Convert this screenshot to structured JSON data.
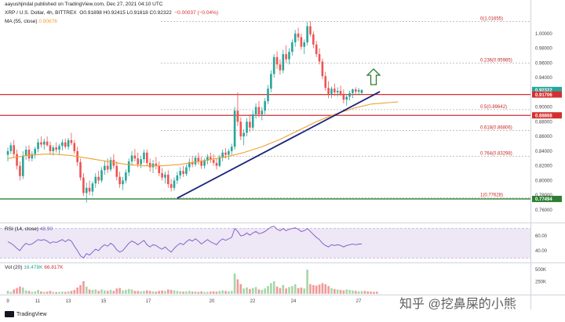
{
  "header": {
    "publisher": "aayushjindal published on TradingView.com, Dec 27, 2021 04:10 UTC",
    "symbol_line": "XRP / U.S. Dollar, 4h, BITTREX",
    "ohlc": "O0.91898  H0.92415  L0.91818  C0.92322",
    "change": "−0.00037 (−0.04%)",
    "ma_label": "MA (55, close)",
    "ma_value": "0.90676"
  },
  "rsi_header": {
    "label": "RSI (14, close)",
    "value": "48.90"
  },
  "vol_header": {
    "label": "Vol (20)",
    "v1": "16.478K",
    "v2": "66.817K"
  },
  "footer": {
    "brand": "TradingView"
  },
  "watermark": "知乎 @挖鼻屎的小熊",
  "colors": {
    "up": "#26a69a",
    "down": "#ef5350",
    "ma": "#f0a030",
    "trendline": "#1a237e",
    "support": "#d32f2f",
    "green_level": "#2e7d32",
    "rsi": "#7e57c2",
    "arrow": "#2e7d32"
  },
  "chart_data": {
    "type": "candlestick",
    "x_tick_labels": [
      "9",
      "11",
      "13",
      "15",
      "17",
      "20",
      "22",
      "24",
      "27"
    ],
    "y_range": [
      0.745,
      1.035
    ],
    "y_ticks": [
      "1.00000",
      "0.98000",
      "0.96000",
      "0.94000",
      "0.90000",
      "0.88000",
      "0.86000",
      "0.84000",
      "0.82000",
      "0.80000",
      "0.78000",
      "0.76000"
    ],
    "price_labels": [
      {
        "text": "0.92322",
        "value": 0.92322,
        "color": "#26a69a"
      },
      {
        "text": "0.91706",
        "value": 0.91706,
        "color": "#d32f2f"
      },
      {
        "text": "0.88868",
        "value": 0.88868,
        "color": "#d32f2f"
      },
      {
        "text": "0.77494",
        "value": 0.77494,
        "color": "#2e7d32"
      }
    ],
    "horizontal_levels": [
      {
        "value": 0.91706,
        "color": "#d32f2f"
      },
      {
        "value": 0.88868,
        "color": "#d32f2f"
      },
      {
        "value": 0.77494,
        "color": "#2e7d32"
      }
    ],
    "fib_levels": [
      {
        "label": "0(1.01655)",
        "value": 1.01655
      },
      {
        "label": "0.236(0.95985)",
        "value": 0.95985
      },
      {
        "label": "0.5(0.89642)",
        "value": 0.89642
      },
      {
        "label": "0.618(0.86806)",
        "value": 0.86806
      },
      {
        "label": "0.764(0.83298)",
        "value": 0.83298
      },
      {
        "label": "1(0.77628)",
        "value": 0.77628
      }
    ],
    "trendline": {
      "from": {
        "bar": 56,
        "price": 0.776
      },
      "to": {
        "bar": 123,
        "price": 0.921
      }
    },
    "candles": [
      [
        0.835,
        0.845,
        0.826,
        0.84
      ],
      [
        0.84,
        0.852,
        0.836,
        0.848
      ],
      [
        0.848,
        0.855,
        0.832,
        0.836
      ],
      [
        0.836,
        0.842,
        0.815,
        0.82
      ],
      [
        0.82,
        0.826,
        0.8,
        0.806
      ],
      [
        0.806,
        0.84,
        0.802,
        0.834
      ],
      [
        0.834,
        0.847,
        0.828,
        0.842
      ],
      [
        0.842,
        0.848,
        0.826,
        0.83
      ],
      [
        0.83,
        0.84,
        0.826,
        0.836
      ],
      [
        0.836,
        0.846,
        0.83,
        0.843
      ],
      [
        0.843,
        0.857,
        0.838,
        0.852
      ],
      [
        0.852,
        0.86,
        0.845,
        0.849
      ],
      [
        0.849,
        0.857,
        0.842,
        0.853
      ],
      [
        0.853,
        0.86,
        0.846,
        0.848
      ],
      [
        0.848,
        0.853,
        0.835,
        0.84
      ],
      [
        0.84,
        0.848,
        0.834,
        0.845
      ],
      [
        0.845,
        0.852,
        0.838,
        0.842
      ],
      [
        0.842,
        0.85,
        0.836,
        0.847
      ],
      [
        0.847,
        0.856,
        0.841,
        0.852
      ],
      [
        0.852,
        0.857,
        0.843,
        0.846
      ],
      [
        0.846,
        0.858,
        0.842,
        0.855
      ],
      [
        0.855,
        0.865,
        0.848,
        0.851
      ],
      [
        0.851,
        0.855,
        0.836,
        0.84
      ],
      [
        0.84,
        0.846,
        0.82,
        0.825
      ],
      [
        0.825,
        0.83,
        0.8,
        0.804
      ],
      [
        0.804,
        0.81,
        0.779,
        0.783
      ],
      [
        0.783,
        0.797,
        0.77,
        0.79
      ],
      [
        0.79,
        0.8,
        0.78,
        0.785
      ],
      [
        0.785,
        0.799,
        0.779,
        0.796
      ],
      [
        0.796,
        0.81,
        0.79,
        0.805
      ],
      [
        0.805,
        0.813,
        0.795,
        0.8
      ],
      [
        0.8,
        0.818,
        0.797,
        0.814
      ],
      [
        0.814,
        0.826,
        0.808,
        0.82
      ],
      [
        0.82,
        0.83,
        0.81,
        0.815
      ],
      [
        0.815,
        0.832,
        0.812,
        0.828
      ],
      [
        0.828,
        0.836,
        0.816,
        0.82
      ],
      [
        0.82,
        0.826,
        0.8,
        0.805
      ],
      [
        0.805,
        0.812,
        0.79,
        0.795
      ],
      [
        0.795,
        0.805,
        0.787,
        0.8
      ],
      [
        0.8,
        0.815,
        0.796,
        0.811
      ],
      [
        0.811,
        0.83,
        0.806,
        0.826
      ],
      [
        0.826,
        0.84,
        0.82,
        0.834
      ],
      [
        0.834,
        0.843,
        0.826,
        0.83
      ],
      [
        0.83,
        0.838,
        0.818,
        0.822
      ],
      [
        0.822,
        0.834,
        0.817,
        0.829
      ],
      [
        0.829,
        0.842,
        0.824,
        0.838
      ],
      [
        0.838,
        0.842,
        0.82,
        0.824
      ],
      [
        0.824,
        0.83,
        0.812,
        0.818
      ],
      [
        0.818,
        0.828,
        0.81,
        0.823
      ],
      [
        0.823,
        0.832,
        0.815,
        0.82
      ],
      [
        0.82,
        0.826,
        0.806,
        0.81
      ],
      [
        0.81,
        0.817,
        0.8,
        0.804
      ],
      [
        0.804,
        0.812,
        0.796,
        0.808
      ],
      [
        0.808,
        0.814,
        0.79,
        0.795
      ],
      [
        0.795,
        0.802,
        0.785,
        0.79
      ],
      [
        0.79,
        0.804,
        0.786,
        0.8
      ],
      [
        0.8,
        0.812,
        0.795,
        0.807
      ],
      [
        0.807,
        0.818,
        0.802,
        0.813
      ],
      [
        0.813,
        0.82,
        0.805,
        0.809
      ],
      [
        0.809,
        0.822,
        0.806,
        0.818
      ],
      [
        0.818,
        0.83,
        0.813,
        0.825
      ],
      [
        0.825,
        0.833,
        0.818,
        0.822
      ],
      [
        0.822,
        0.834,
        0.819,
        0.831
      ],
      [
        0.831,
        0.838,
        0.822,
        0.826
      ],
      [
        0.826,
        0.832,
        0.816,
        0.82
      ],
      [
        0.82,
        0.83,
        0.816,
        0.827
      ],
      [
        0.827,
        0.836,
        0.822,
        0.832
      ],
      [
        0.832,
        0.838,
        0.824,
        0.828
      ],
      [
        0.828,
        0.836,
        0.82,
        0.824
      ],
      [
        0.824,
        0.83,
        0.815,
        0.82
      ],
      [
        0.82,
        0.835,
        0.818,
        0.832
      ],
      [
        0.832,
        0.842,
        0.826,
        0.838
      ],
      [
        0.838,
        0.844,
        0.83,
        0.835
      ],
      [
        0.835,
        0.843,
        0.828,
        0.84
      ],
      [
        0.84,
        0.85,
        0.835,
        0.846
      ],
      [
        0.846,
        0.9,
        0.842,
        0.895
      ],
      [
        0.895,
        0.92,
        0.874,
        0.88
      ],
      [
        0.88,
        0.886,
        0.855,
        0.86
      ],
      [
        0.86,
        0.87,
        0.848,
        0.865
      ],
      [
        0.865,
        0.885,
        0.86,
        0.88
      ],
      [
        0.88,
        0.89,
        0.866,
        0.872
      ],
      [
        0.872,
        0.895,
        0.868,
        0.89
      ],
      [
        0.89,
        0.905,
        0.884,
        0.9
      ],
      [
        0.9,
        0.908,
        0.886,
        0.89
      ],
      [
        0.89,
        0.9,
        0.882,
        0.895
      ],
      [
        0.895,
        0.912,
        0.89,
        0.908
      ],
      [
        0.908,
        0.93,
        0.904,
        0.925
      ],
      [
        0.925,
        0.95,
        0.92,
        0.945
      ],
      [
        0.945,
        0.972,
        0.94,
        0.968
      ],
      [
        0.968,
        0.976,
        0.952,
        0.958
      ],
      [
        0.958,
        0.965,
        0.944,
        0.95
      ],
      [
        0.95,
        0.978,
        0.946,
        0.972
      ],
      [
        0.972,
        0.984,
        0.96,
        0.965
      ],
      [
        0.965,
        0.98,
        0.958,
        0.975
      ],
      [
        0.975,
        0.992,
        0.97,
        0.988
      ],
      [
        0.988,
        1.005,
        0.982,
        1.0
      ],
      [
        1.0,
        1.008,
        0.99,
        0.995
      ],
      [
        0.995,
        1.0,
        0.978,
        0.982
      ],
      [
        0.982,
        0.992,
        0.972,
        0.988
      ],
      [
        0.988,
        1.016,
        0.984,
        1.01
      ],
      [
        1.01,
        1.017,
        0.996,
        0.999
      ],
      [
        0.999,
        1.003,
        0.98,
        0.985
      ],
      [
        0.985,
        0.99,
        0.968,
        0.972
      ],
      [
        0.972,
        0.98,
        0.958,
        0.962
      ],
      [
        0.962,
        0.966,
        0.938,
        0.942
      ],
      [
        0.942,
        0.948,
        0.922,
        0.926
      ],
      [
        0.926,
        0.935,
        0.912,
        0.918
      ],
      [
        0.918,
        0.928,
        0.912,
        0.925
      ],
      [
        0.925,
        0.932,
        0.915,
        0.92
      ],
      [
        0.92,
        0.927,
        0.914,
        0.922
      ],
      [
        0.922,
        0.929,
        0.915,
        0.918
      ],
      [
        0.918,
        0.924,
        0.905,
        0.91
      ],
      [
        0.91,
        0.916,
        0.902,
        0.914
      ],
      [
        0.914,
        0.922,
        0.909,
        0.919
      ],
      [
        0.919,
        0.925,
        0.912,
        0.924
      ],
      [
        0.924,
        0.927,
        0.917,
        0.921
      ],
      [
        0.921,
        0.926,
        0.916,
        0.923
      ],
      [
        0.919,
        0.9242,
        0.9182,
        0.9232
      ]
    ],
    "ma55": [
      0.83,
      0.832,
      0.834,
      0.835,
      0.836,
      0.836,
      0.835,
      0.834,
      0.832,
      0.83,
      0.828,
      0.826,
      0.824,
      0.822,
      0.821,
      0.82,
      0.82,
      0.82,
      0.821,
      0.822,
      0.824,
      0.826,
      0.828,
      0.83,
      0.832,
      0.835,
      0.838,
      0.842,
      0.846,
      0.851,
      0.856,
      0.862,
      0.868,
      0.874,
      0.88,
      0.885,
      0.89,
      0.894,
      0.898,
      0.901,
      0.904,
      0.905,
      0.906,
      0.907
    ],
    "ma55_start_bar": 0,
    "ma55_step": 3,
    "rsi": {
      "label": "RSI (14, close)",
      "range": [
        25,
        75
      ],
      "band": [
        30,
        70
      ],
      "ticks": [
        "60.00",
        "40.00"
      ],
      "values": [
        52,
        50,
        47,
        43,
        40,
        46,
        50,
        48,
        49,
        52,
        55,
        54,
        55,
        53,
        50,
        52,
        51,
        53,
        55,
        52,
        55,
        53,
        46,
        40,
        33,
        30,
        36,
        34,
        38,
        42,
        40,
        45,
        48,
        46,
        50,
        47,
        41,
        38,
        40,
        45,
        50,
        53,
        51,
        48,
        51,
        54,
        48,
        45,
        48,
        47,
        44,
        42,
        45,
        41,
        38,
        43,
        47,
        50,
        48,
        52,
        55,
        53,
        56,
        53,
        49,
        52,
        55,
        52,
        50,
        48,
        53,
        56,
        54,
        56,
        58,
        70,
        66,
        60,
        61,
        64,
        61,
        64,
        66,
        63,
        64,
        66,
        69,
        72,
        73,
        69,
        67,
        70,
        67,
        69,
        70,
        71,
        69,
        66,
        67,
        70,
        66,
        62,
        58,
        55,
        50,
        47,
        45,
        48,
        47,
        48,
        47,
        45,
        47,
        48,
        49,
        48,
        49,
        48.9
      ]
    },
    "volume": {
      "label": "Vol (20)",
      "ticks": [
        "500K",
        "250K"
      ],
      "max": 600,
      "values": [
        60,
        40,
        90,
        120,
        150,
        130,
        70,
        60,
        40,
        50,
        80,
        50,
        40,
        45,
        60,
        40,
        35,
        40,
        45,
        40,
        50,
        60,
        80,
        130,
        180,
        260,
        150,
        90,
        80,
        90,
        60,
        90,
        70,
        60,
        80,
        60,
        110,
        120,
        70,
        80,
        100,
        90,
        60,
        60,
        50,
        60,
        70,
        60,
        50,
        45,
        60,
        70,
        60,
        90,
        80,
        70,
        60,
        50,
        45,
        50,
        60,
        45,
        50,
        40,
        50,
        40,
        40,
        45,
        50,
        45,
        60,
        70,
        60,
        50,
        60,
        420,
        300,
        200,
        110,
        130,
        100,
        120,
        140,
        90,
        80,
        110,
        160,
        220,
        260,
        150,
        120,
        180,
        110,
        140,
        160,
        200,
        120,
        130,
        110,
        500,
        200,
        180,
        170,
        190,
        220,
        200,
        160,
        120,
        100,
        90,
        80,
        70,
        90,
        80,
        70,
        60,
        50,
        55,
        60,
        50,
        45,
        40,
        42
      ]
    }
  }
}
